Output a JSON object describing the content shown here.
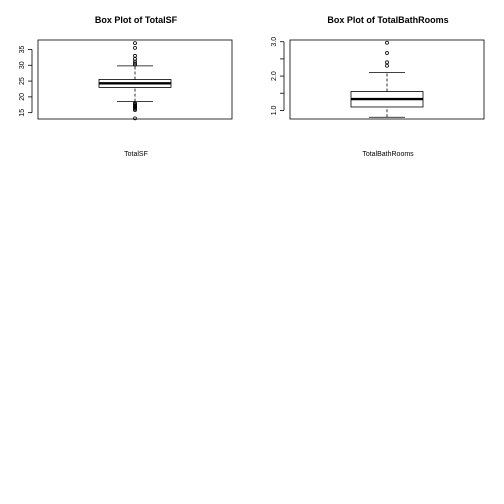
{
  "chart_data": [
    {
      "type": "boxplot",
      "title": "Box Plot of  TotalSF",
      "xlabel": "TotalSF",
      "ylabel": "",
      "ylim": [
        13,
        38
      ],
      "y_ticks": [
        15,
        20,
        25,
        30,
        35
      ],
      "y_tick_labels": [
        "15",
        "20",
        "25",
        "30",
        "35"
      ],
      "box": {
        "min": 18.5,
        "q1": 23.0,
        "median": 24.3,
        "q3": 25.5,
        "max": 29.8
      },
      "outliers": [
        13.2,
        15.8,
        16.2,
        16.5,
        16.8,
        17.0,
        17.2,
        17.5,
        17.8,
        18.0,
        30.2,
        30.6,
        31.2,
        32.0,
        33.0,
        35.5,
        37.0
      ]
    },
    {
      "type": "boxplot",
      "title": "Box Plot of  TotalBathRooms",
      "xlabel": "TotalBathRooms",
      "ylabel": "",
      "ylim": [
        0.75,
        3.05
      ],
      "y_ticks": [
        1.0,
        1.5,
        2.0,
        2.5,
        3.0
      ],
      "y_tick_labels": [
        "1.0",
        "",
        "2.0",
        "",
        "3.0"
      ],
      "box": {
        "min": 0.8,
        "q1": 1.1,
        "median": 1.33,
        "q3": 1.55,
        "max": 2.1
      },
      "outliers": [
        2.3,
        2.4,
        2.67,
        2.97
      ]
    }
  ]
}
